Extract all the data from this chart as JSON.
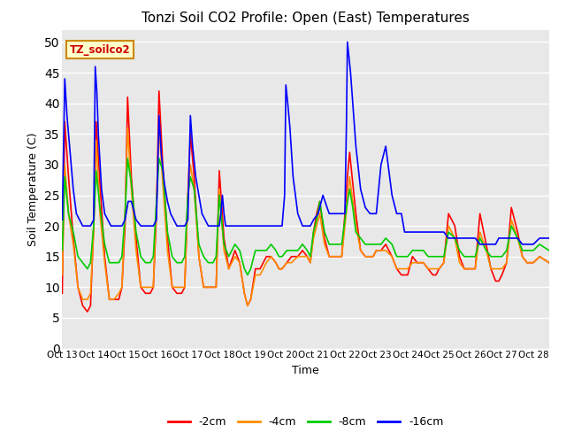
{
  "title": "Tonzi Soil CO2 Profile: Open (East) Temperatures",
  "xlabel": "Time",
  "ylabel": "Soil Temperature (C)",
  "ylim": [
    0,
    52
  ],
  "yticks": [
    0,
    5,
    10,
    15,
    20,
    25,
    30,
    35,
    40,
    45,
    50
  ],
  "xlim": [
    0,
    15.5
  ],
  "xtick_labels": [
    "Oct 13",
    "Oct 14",
    "Oct 15",
    "Oct 16",
    "Oct 17",
    "Oct 18",
    "Oct 19",
    "Oct 20",
    "Oct 21",
    "Oct 22",
    "Oct 23",
    "Oct 24",
    "Oct 25",
    "Oct 26",
    "Oct 27",
    "Oct 28"
  ],
  "xtick_positions": [
    0,
    1,
    2,
    3,
    4,
    5,
    6,
    7,
    8,
    9,
    10,
    11,
    12,
    13,
    14,
    15
  ],
  "legend_label": "TZ_soilco2",
  "bg_color": "#e8e8e8",
  "grid_color": "#ffffff",
  "series": {
    "-2cm": {
      "color": "#ff0000",
      "x": [
        0.0,
        0.08,
        0.2,
        0.35,
        0.5,
        0.65,
        0.8,
        0.9,
        1.0,
        1.08,
        1.2,
        1.35,
        1.5,
        1.65,
        1.8,
        1.9,
        2.0,
        2.08,
        2.2,
        2.35,
        2.5,
        2.65,
        2.8,
        2.9,
        3.0,
        3.08,
        3.2,
        3.35,
        3.5,
        3.65,
        3.8,
        3.9,
        4.0,
        4.08,
        4.2,
        4.35,
        4.5,
        4.65,
        4.8,
        4.9,
        5.0,
        5.15,
        5.3,
        5.5,
        5.65,
        5.8,
        5.9,
        6.0,
        6.15,
        6.3,
        6.5,
        6.65,
        6.8,
        6.9,
        7.0,
        7.15,
        7.3,
        7.5,
        7.65,
        7.8,
        7.9,
        8.0,
        8.1,
        8.2,
        8.35,
        8.5,
        8.65,
        8.8,
        8.9,
        9.0,
        9.08,
        9.15,
        9.25,
        9.35,
        9.5,
        9.65,
        9.8,
        9.9,
        10.0,
        10.15,
        10.3,
        10.5,
        10.65,
        10.8,
        10.9,
        11.0,
        11.15,
        11.3,
        11.5,
        11.65,
        11.8,
        11.9,
        12.0,
        12.15,
        12.3,
        12.5,
        12.65,
        12.8,
        12.9,
        13.0,
        13.15,
        13.3,
        13.5,
        13.65,
        13.8,
        13.9,
        14.0,
        14.15,
        14.3,
        14.5,
        14.65,
        14.8,
        14.9,
        15.0,
        15.2,
        15.5
      ],
      "y": [
        9,
        37,
        28,
        18,
        10,
        7,
        6,
        7,
        20,
        37,
        27,
        15,
        8,
        8,
        8,
        10,
        20,
        41,
        28,
        18,
        10,
        9,
        9,
        10,
        22,
        42,
        30,
        18,
        10,
        9,
        9,
        10,
        25,
        35,
        28,
        15,
        10,
        10,
        10,
        10,
        29,
        18,
        13,
        16,
        14,
        9,
        7,
        8,
        13,
        13,
        15,
        15,
        14,
        13,
        13,
        14,
        15,
        15,
        16,
        15,
        14,
        19,
        22,
        24,
        18,
        15,
        15,
        15,
        15,
        22,
        28,
        32,
        27,
        22,
        16,
        15,
        15,
        15,
        16,
        16,
        17,
        15,
        13,
        12,
        12,
        12,
        15,
        14,
        14,
        13,
        12,
        12,
        13,
        14,
        22,
        20,
        15,
        13,
        13,
        13,
        13,
        22,
        17,
        13,
        11,
        11,
        12,
        14,
        23,
        19,
        15,
        14,
        14,
        14,
        15,
        14
      ]
    },
    "-4cm": {
      "color": "#ff8c00",
      "x": [
        0.0,
        0.08,
        0.2,
        0.35,
        0.5,
        0.65,
        0.8,
        0.9,
        1.0,
        1.08,
        1.2,
        1.35,
        1.5,
        1.65,
        1.8,
        1.9,
        2.0,
        2.08,
        2.2,
        2.35,
        2.5,
        2.65,
        2.8,
        2.9,
        3.0,
        3.08,
        3.2,
        3.35,
        3.5,
        3.65,
        3.8,
        3.9,
        4.0,
        4.08,
        4.2,
        4.35,
        4.5,
        4.65,
        4.8,
        4.9,
        5.0,
        5.15,
        5.3,
        5.5,
        5.65,
        5.8,
        5.9,
        6.0,
        6.15,
        6.3,
        6.5,
        6.65,
        6.8,
        6.9,
        7.0,
        7.15,
        7.3,
        7.5,
        7.65,
        7.8,
        7.9,
        8.0,
        8.1,
        8.2,
        8.35,
        8.5,
        8.65,
        8.8,
        8.9,
        9.0,
        9.08,
        9.15,
        9.25,
        9.35,
        9.5,
        9.65,
        9.8,
        9.9,
        10.0,
        10.15,
        10.3,
        10.5,
        10.65,
        10.8,
        10.9,
        11.0,
        11.15,
        11.3,
        11.5,
        11.65,
        11.8,
        11.9,
        12.0,
        12.15,
        12.3,
        12.5,
        12.65,
        12.8,
        12.9,
        13.0,
        13.15,
        13.3,
        13.5,
        13.65,
        13.8,
        13.9,
        14.0,
        14.15,
        14.3,
        14.5,
        14.65,
        14.8,
        14.9,
        15.0,
        15.2,
        15.5
      ],
      "y": [
        12,
        30,
        22,
        17,
        10,
        8,
        8,
        9,
        19,
        34,
        22,
        14,
        8,
        8,
        9,
        10,
        22,
        36,
        26,
        16,
        10,
        10,
        10,
        10,
        24,
        36,
        27,
        16,
        10,
        10,
        10,
        10,
        25,
        30,
        26,
        15,
        10,
        10,
        10,
        10,
        26,
        16,
        13,
        15,
        14,
        9,
        7,
        8,
        12,
        12,
        14,
        15,
        14,
        13,
        13,
        14,
        14,
        15,
        15,
        15,
        14,
        18,
        20,
        22,
        17,
        15,
        15,
        15,
        15,
        20,
        24,
        28,
        24,
        20,
        16,
        15,
        15,
        15,
        16,
        16,
        16,
        15,
        13,
        13,
        13,
        13,
        14,
        14,
        14,
        13,
        13,
        13,
        13,
        14,
        20,
        18,
        14,
        13,
        13,
        13,
        13,
        19,
        16,
        13,
        13,
        13,
        13,
        14,
        21,
        18,
        15,
        14,
        14,
        14,
        15,
        14
      ]
    },
    "-8cm": {
      "color": "#00cc00",
      "x": [
        0.0,
        0.08,
        0.2,
        0.35,
        0.5,
        0.65,
        0.8,
        0.9,
        1.0,
        1.08,
        1.2,
        1.35,
        1.5,
        1.65,
        1.8,
        1.9,
        2.0,
        2.08,
        2.2,
        2.35,
        2.5,
        2.65,
        2.8,
        2.9,
        3.0,
        3.08,
        3.2,
        3.35,
        3.5,
        3.65,
        3.8,
        3.9,
        4.0,
        4.08,
        4.2,
        4.35,
        4.5,
        4.65,
        4.8,
        4.9,
        5.0,
        5.15,
        5.3,
        5.5,
        5.65,
        5.8,
        5.9,
        6.0,
        6.15,
        6.3,
        6.5,
        6.65,
        6.8,
        6.9,
        7.0,
        7.15,
        7.3,
        7.5,
        7.65,
        7.8,
        7.9,
        8.0,
        8.1,
        8.2,
        8.35,
        8.5,
        8.65,
        8.8,
        8.9,
        9.0,
        9.08,
        9.15,
        9.25,
        9.35,
        9.5,
        9.65,
        9.8,
        9.9,
        10.0,
        10.15,
        10.3,
        10.5,
        10.65,
        10.8,
        10.9,
        11.0,
        11.15,
        11.3,
        11.5,
        11.65,
        11.8,
        11.9,
        12.0,
        12.15,
        12.3,
        12.5,
        12.65,
        12.8,
        12.9,
        13.0,
        13.15,
        13.3,
        13.5,
        13.65,
        13.8,
        13.9,
        14.0,
        14.15,
        14.3,
        14.5,
        14.65,
        14.8,
        14.9,
        15.0,
        15.2,
        15.5
      ],
      "y": [
        16,
        28,
        22,
        19,
        15,
        14,
        13,
        14,
        20,
        29,
        23,
        17,
        14,
        14,
        14,
        15,
        22,
        31,
        27,
        19,
        15,
        14,
        14,
        15,
        24,
        31,
        29,
        19,
        15,
        14,
        14,
        15,
        25,
        28,
        26,
        17,
        15,
        14,
        14,
        15,
        25,
        17,
        15,
        17,
        16,
        13,
        12,
        13,
        16,
        16,
        16,
        17,
        16,
        15,
        15,
        16,
        16,
        16,
        17,
        16,
        15,
        19,
        21,
        24,
        19,
        17,
        17,
        17,
        17,
        21,
        24,
        26,
        23,
        19,
        18,
        17,
        17,
        17,
        17,
        17,
        18,
        17,
        15,
        15,
        15,
        15,
        16,
        16,
        16,
        15,
        15,
        15,
        15,
        15,
        19,
        18,
        16,
        15,
        15,
        15,
        15,
        18,
        16,
        15,
        15,
        15,
        15,
        16,
        20,
        18,
        16,
        16,
        16,
        16,
        17,
        16
      ]
    },
    "-16cm": {
      "color": "#0000ff",
      "x": [
        0.0,
        0.08,
        0.15,
        0.25,
        0.35,
        0.45,
        0.55,
        0.65,
        0.75,
        0.85,
        0.9,
        1.0,
        1.05,
        1.1,
        1.15,
        1.25,
        1.35,
        1.45,
        1.55,
        1.65,
        1.8,
        1.9,
        2.0,
        2.1,
        2.2,
        2.35,
        2.5,
        2.65,
        2.8,
        2.9,
        3.0,
        3.08,
        3.15,
        3.25,
        3.35,
        3.45,
        3.55,
        3.65,
        3.8,
        3.9,
        4.0,
        4.08,
        4.15,
        4.25,
        4.35,
        4.45,
        4.55,
        4.65,
        4.8,
        4.9,
        5.0,
        5.05,
        5.1,
        5.15,
        5.2,
        5.3,
        5.5,
        5.65,
        5.8,
        5.9,
        6.0,
        6.15,
        6.3,
        6.5,
        6.65,
        6.8,
        6.9,
        7.0,
        7.08,
        7.12,
        7.18,
        7.25,
        7.35,
        7.5,
        7.65,
        7.8,
        7.9,
        8.0,
        8.15,
        8.3,
        8.5,
        8.65,
        8.8,
        8.9,
        9.0,
        9.05,
        9.08,
        9.12,
        9.18,
        9.25,
        9.35,
        9.5,
        9.65,
        9.8,
        9.9,
        10.0,
        10.15,
        10.3,
        10.5,
        10.65,
        10.8,
        10.9,
        11.0,
        11.15,
        11.3,
        11.5,
        11.65,
        11.8,
        11.9,
        12.0,
        12.15,
        12.3,
        12.5,
        12.65,
        12.8,
        12.9,
        13.0,
        13.15,
        13.3,
        13.5,
        13.65,
        13.8,
        13.9,
        14.0,
        14.15,
        14.3,
        14.5,
        14.65,
        14.8,
        14.9,
        15.0,
        15.2,
        15.5
      ],
      "y": [
        21,
        44,
        38,
        32,
        26,
        22,
        21,
        20,
        20,
        20,
        20,
        21,
        46,
        42,
        35,
        26,
        22,
        21,
        20,
        20,
        20,
        20,
        21,
        24,
        24,
        21,
        20,
        20,
        20,
        20,
        21,
        38,
        32,
        27,
        24,
        22,
        21,
        20,
        20,
        20,
        21,
        38,
        33,
        28,
        25,
        22,
        21,
        20,
        20,
        20,
        20,
        22,
        25,
        22,
        20,
        20,
        20,
        20,
        20,
        20,
        20,
        20,
        20,
        20,
        20,
        20,
        20,
        20,
        25,
        43,
        40,
        36,
        28,
        22,
        20,
        20,
        20,
        21,
        22,
        25,
        22,
        22,
        22,
        22,
        22,
        37,
        50,
        48,
        45,
        40,
        33,
        26,
        23,
        22,
        22,
        22,
        30,
        33,
        25,
        22,
        22,
        19,
        19,
        19,
        19,
        19,
        19,
        19,
        19,
        19,
        19,
        18,
        18,
        18,
        18,
        18,
        18,
        18,
        17,
        17,
        17,
        17,
        18,
        18,
        18,
        18,
        18,
        17,
        17,
        17,
        17,
        18,
        18
      ]
    }
  }
}
